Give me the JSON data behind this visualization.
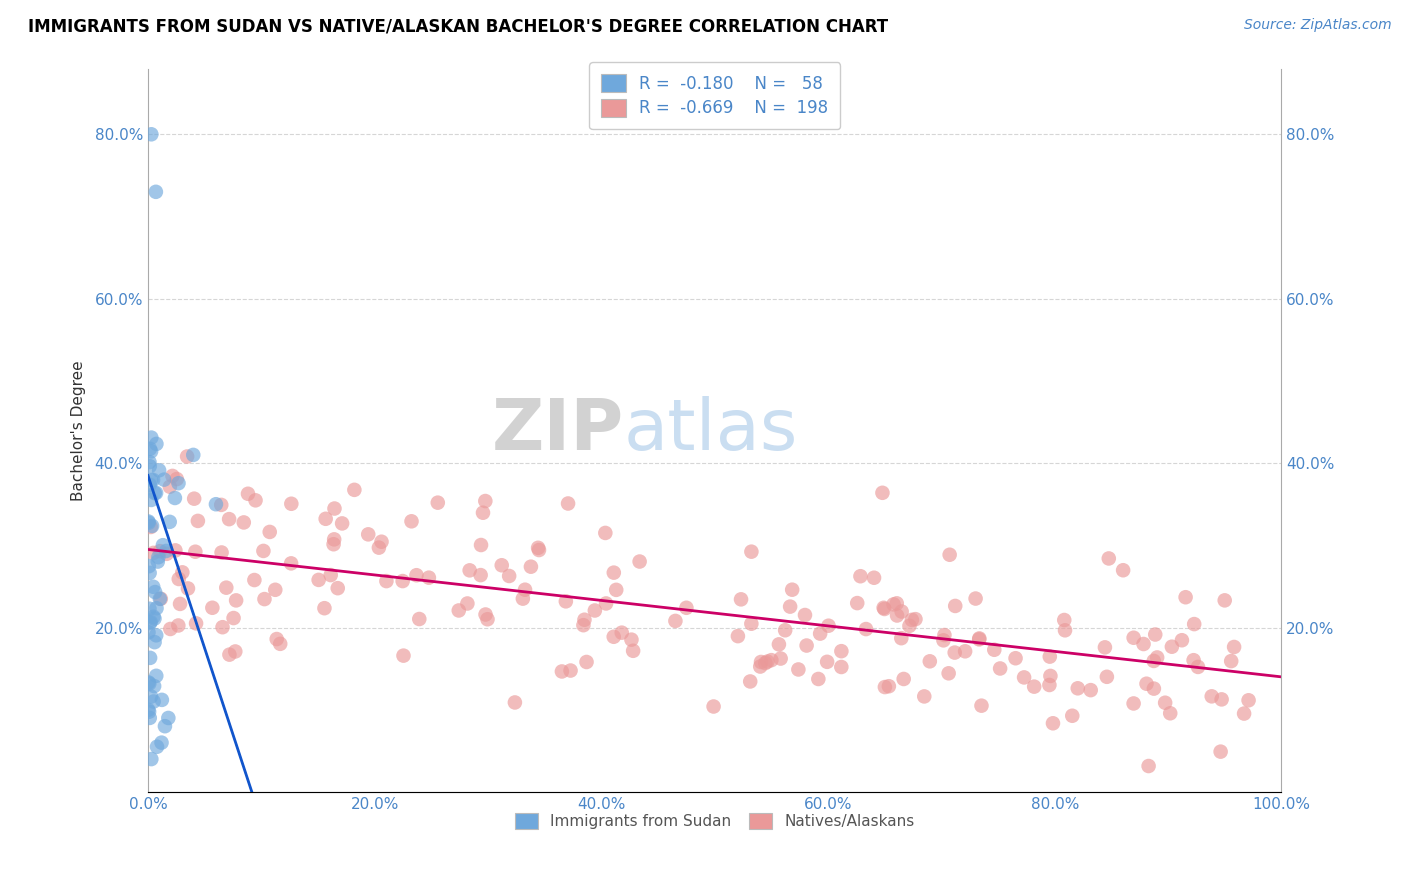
{
  "title": "IMMIGRANTS FROM SUDAN VS NATIVE/ALASKAN BACHELOR'S DEGREE CORRELATION CHART",
  "source": "Source: ZipAtlas.com",
  "xlabel": "",
  "ylabel": "Bachelor's Degree",
  "watermark_zip": "ZIP",
  "watermark_atlas": "atlas",
  "xmin": 0.0,
  "xmax": 1.0,
  "ymin": 0.0,
  "ymax": 0.88,
  "xticks": [
    0.0,
    0.2,
    0.4,
    0.6,
    0.8,
    1.0
  ],
  "xticklabels": [
    "0.0%",
    "20.0%",
    "40.0%",
    "60.0%",
    "80.0%",
    "100.0%"
  ],
  "yticks": [
    0.2,
    0.4,
    0.6,
    0.8
  ],
  "yticklabels": [
    "20.0%",
    "40.0%",
    "60.0%",
    "80.0%"
  ],
  "right_yticks": [
    0.2,
    0.4,
    0.6,
    0.8
  ],
  "right_yticklabels": [
    "20.0%",
    "40.0%",
    "60.0%",
    "80.0%"
  ],
  "blue_color": "#6fa8dc",
  "pink_color": "#ea9999",
  "blue_line_color": "#1155cc",
  "pink_line_color": "#cc0066",
  "blue_r": -0.18,
  "blue_n": 58,
  "pink_r": -0.669,
  "pink_n": 198,
  "blue_intercept": 0.385,
  "blue_slope": -4.2,
  "pink_intercept": 0.295,
  "pink_slope": -0.155,
  "background_color": "#ffffff",
  "grid_color": "#cccccc",
  "title_color": "#000000",
  "tick_color": "#4a86c8",
  "legend_entries": [
    "Immigrants from Sudan",
    "Natives/Alaskans"
  ]
}
